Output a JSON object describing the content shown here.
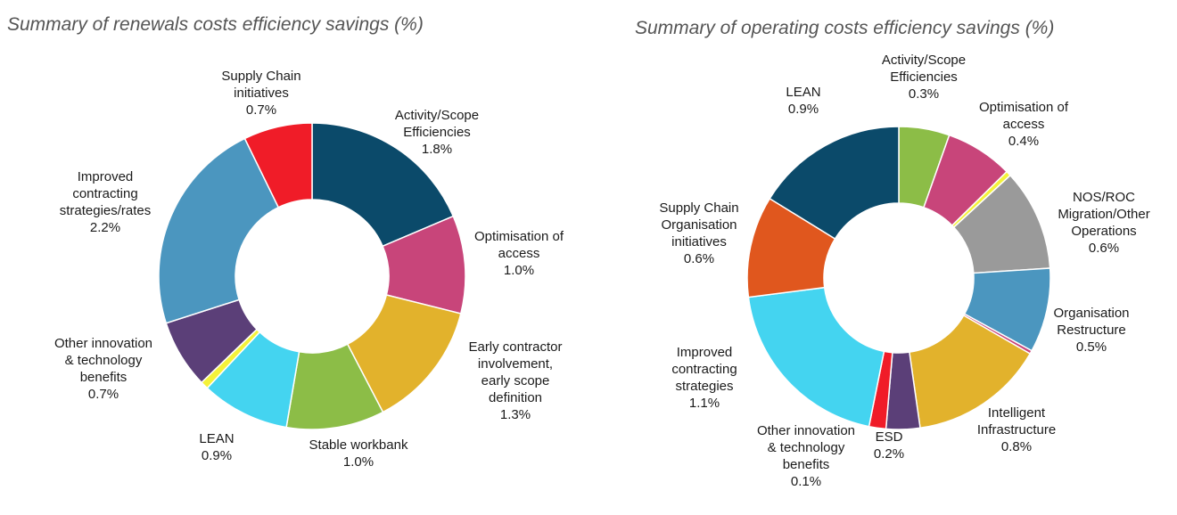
{
  "chart_data": [
    {
      "type": "pie",
      "title": "Summary of renewals costs efficiency savings (%)",
      "unit": "%",
      "categories": [
        "Activity/Scope Efficiencies",
        "Optimisation of access",
        "Early contractor involvement, early scope definition",
        "Stable workbank",
        "LEAN",
        "",
        "Other innovation & technology benefits",
        "Improved contracting strategies/rates",
        "Supply Chain initiatives"
      ],
      "values": [
        1.8,
        1.0,
        1.3,
        1.0,
        0.9,
        0.08,
        0.7,
        2.2,
        0.7
      ],
      "value_labels": [
        "1.8%",
        "1.0%",
        "1.3%",
        "1.0%",
        "0.9%",
        "",
        "0.7%",
        "2.2%",
        "0.7%"
      ],
      "colors": [
        "#0b4a6a",
        "#c8457a",
        "#e2b22c",
        "#8cbd47",
        "#44d4f0",
        "#f4f23a",
        "#5b3f78",
        "#4b96bf",
        "#f01c28"
      ],
      "labels": [
        {
          "lines": [
            "Activity/Scope",
            "Efficiencies",
            "1.8%"
          ]
        },
        {
          "lines": [
            "Optimisation of",
            "access",
            "1.0%"
          ]
        },
        {
          "lines": [
            "Early contractor",
            "involvement,",
            "early scope",
            "definition",
            "1.3%"
          ]
        },
        {
          "lines": [
            "Stable workbank",
            "1.0%"
          ]
        },
        {
          "lines": [
            "LEAN",
            "0.9%"
          ]
        },
        {
          "lines": []
        },
        {
          "lines": [
            "Other innovation",
            "& technology",
            "benefits",
            "0.7%"
          ]
        },
        {
          "lines": [
            "Improved",
            "contracting",
            "strategies/rates",
            "2.2%"
          ]
        },
        {
          "lines": [
            "Supply Chain",
            "initiatives",
            "0.7%"
          ]
        }
      ]
    },
    {
      "type": "pie",
      "title": "Summary of operating costs efficiency savings (%)",
      "unit": "%",
      "categories": [
        "Activity/Scope Efficiencies",
        "Optimisation of access",
        "",
        "NOS/ROC Migration/Other Operations",
        "Organisation Restructure",
        "",
        "Intelligent Infrastructure",
        "ESD",
        "Other innovation & technology benefits",
        "Improved contracting strategies",
        "Supply Chain Organisation initiatives",
        "LEAN"
      ],
      "values": [
        0.3,
        0.4,
        0.03,
        0.6,
        0.5,
        0.02,
        0.8,
        0.2,
        0.1,
        1.1,
        0.6,
        0.9
      ],
      "value_labels": [
        "0.3%",
        "0.4%",
        "",
        "0.6%",
        "0.5%",
        "",
        "0.8%",
        "0.2%",
        "0.1%",
        "1.1%",
        "0.6%",
        "0.9%"
      ],
      "colors": [
        "#8cbd47",
        "#c8457a",
        "#f4f23a",
        "#9a9a9a",
        "#4b96bf",
        "#c8457a",
        "#e2b22c",
        "#5b3f78",
        "#f01c28",
        "#44d4f0",
        "#e0571e",
        "#0b4a6a"
      ],
      "labels": [
        {
          "lines": [
            "Activity/Scope",
            "Efficiencies",
            "0.3%"
          ]
        },
        {
          "lines": [
            "Optimisation of",
            "access",
            "0.4%"
          ]
        },
        {
          "lines": []
        },
        {
          "lines": [
            "NOS/ROC",
            "Migration/Other",
            "Operations",
            "0.6%"
          ]
        },
        {
          "lines": [
            "Organisation",
            "Restructure",
            "0.5%"
          ]
        },
        {
          "lines": []
        },
        {
          "lines": [
            "Intelligent",
            "Infrastructure",
            "0.8%"
          ]
        },
        {
          "lines": [
            "ESD",
            "0.2%"
          ]
        },
        {
          "lines": [
            "Other innovation",
            "& technology",
            "benefits",
            "0.1%"
          ]
        },
        {
          "lines": [
            "Improved",
            "contracting",
            "strategies",
            "1.1%"
          ]
        },
        {
          "lines": [
            "Supply Chain",
            "Organisation",
            "initiatives",
            "0.6%"
          ]
        },
        {
          "lines": [
            "LEAN",
            "0.9%"
          ]
        }
      ]
    }
  ]
}
